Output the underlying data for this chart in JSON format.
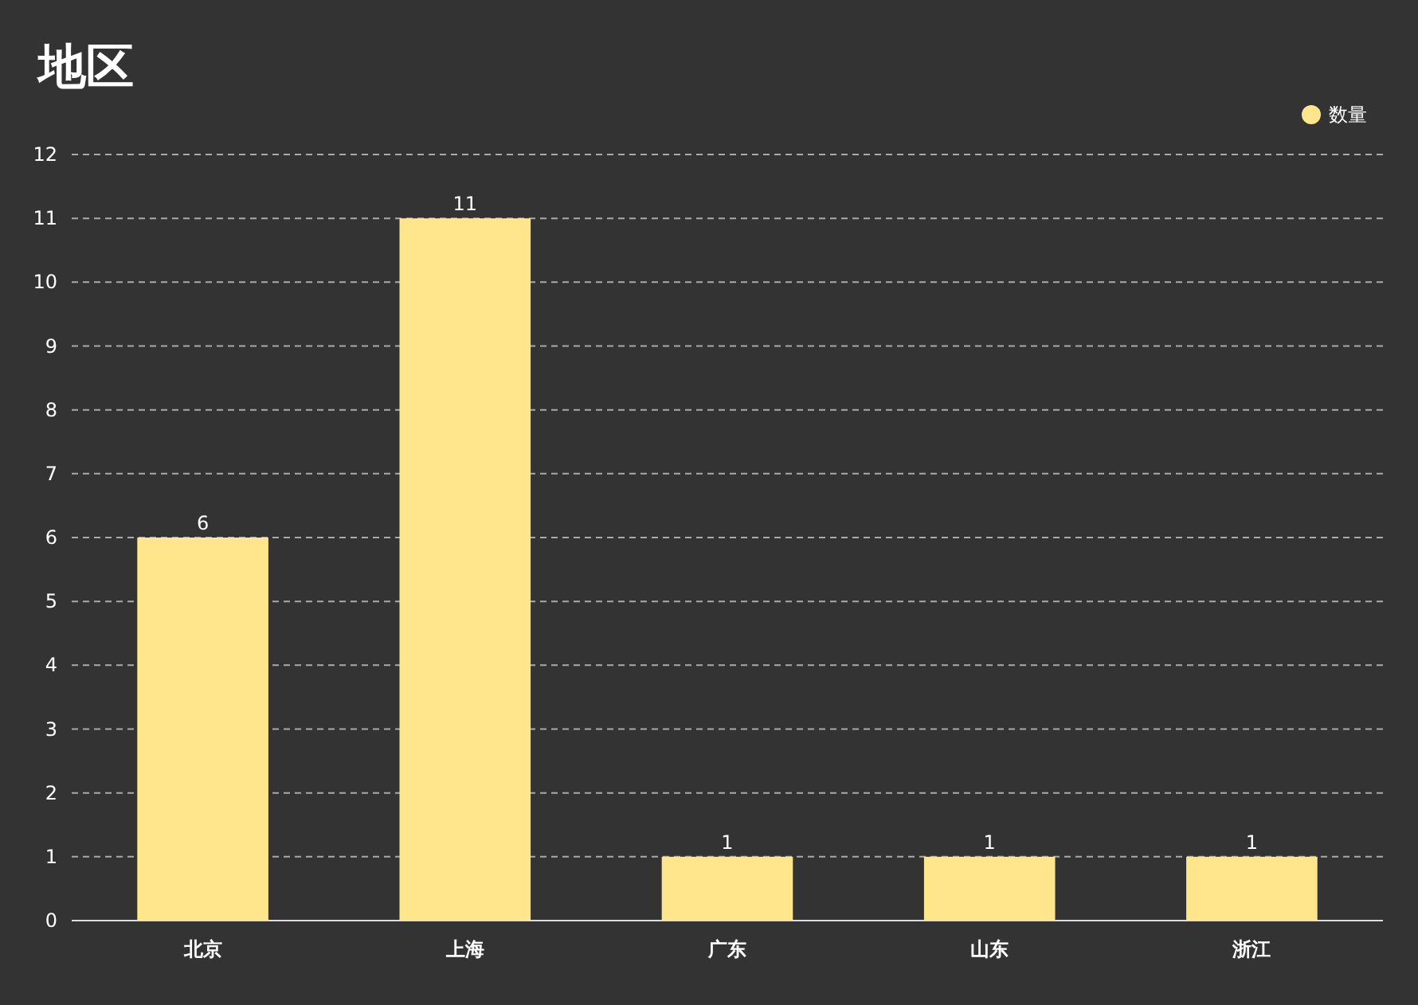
{
  "chart_data": {
    "type": "bar",
    "title": "地区",
    "categories": [
      "北京",
      "上海",
      "广东",
      "山东",
      "浙江"
    ],
    "series": [
      {
        "name": "数量",
        "color": "#ffe68c",
        "values": [
          6,
          11,
          1,
          1,
          1
        ]
      }
    ],
    "ylim": [
      0,
      12
    ],
    "yticks": [
      0,
      1,
      2,
      3,
      4,
      5,
      6,
      7,
      8,
      9,
      10,
      11,
      12
    ],
    "grid": "y",
    "legend": "top right",
    "data_labels": true
  }
}
